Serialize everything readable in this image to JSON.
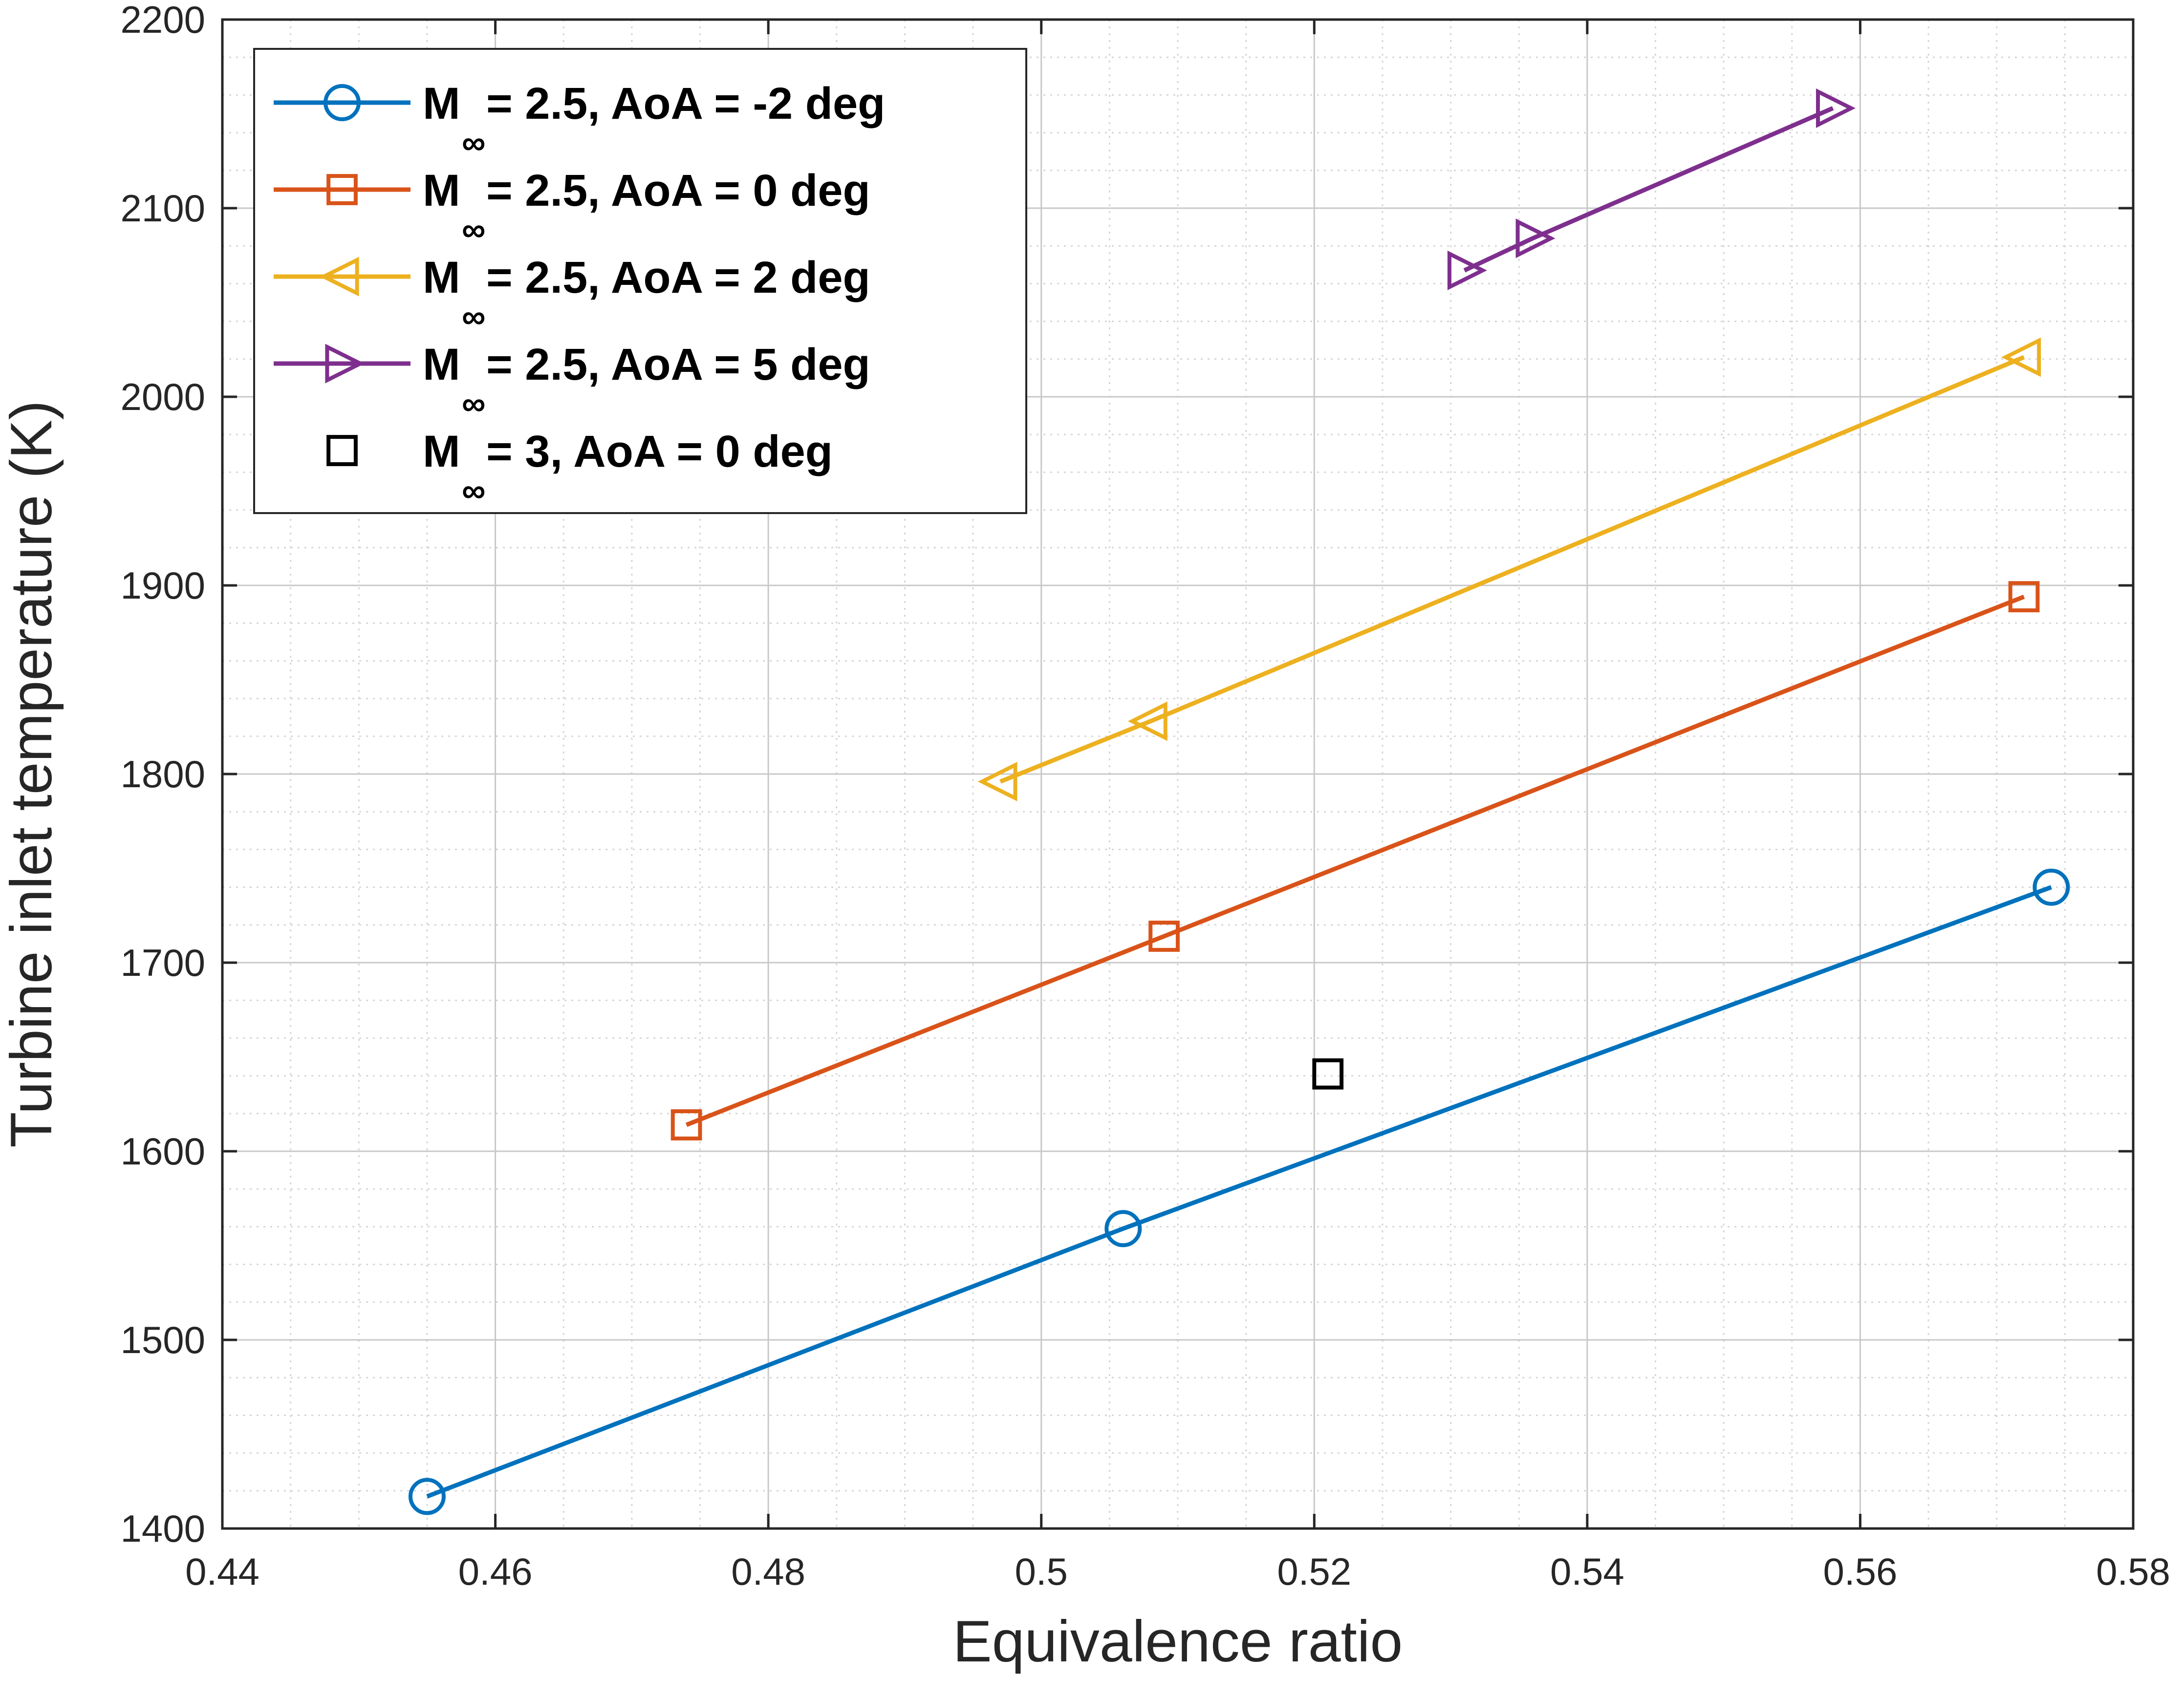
{
  "chart_data": {
    "type": "line",
    "title": "",
    "xlabel": "Equivalence ratio",
    "ylabel": "Turbine inlet temperature (K)",
    "xlim": [
      0.44,
      0.58
    ],
    "ylim": [
      1400,
      2200
    ],
    "xticks": [
      0.44,
      0.46,
      0.48,
      0.5,
      0.52,
      0.54,
      0.56,
      0.58
    ],
    "xtick_labels": [
      "0.44",
      "0.46",
      "0.48",
      "0.5",
      "0.52",
      "0.54",
      "0.56",
      "0.58"
    ],
    "yticks": [
      1400,
      1500,
      1600,
      1700,
      1800,
      1900,
      2000,
      2100,
      2200
    ],
    "ytick_labels": [
      "1400",
      "1500",
      "1600",
      "1700",
      "1800",
      "1900",
      "2000",
      "2100",
      "2200"
    ],
    "grid": true,
    "minor_grid": true,
    "legend_position": "top-left",
    "series": [
      {
        "name": "= 2.5, AoA = -2 deg",
        "mach_symbol": "M",
        "mach_subscript": "∞",
        "color": "#0072BD",
        "marker": "circle",
        "line": true,
        "x": [
          0.455,
          0.506,
          0.574
        ],
        "y": [
          1417,
          1559,
          1740
        ]
      },
      {
        "name": "= 2.5, AoA = 0 deg",
        "mach_symbol": "M",
        "mach_subscript": "∞",
        "color": "#D95319",
        "marker": "square",
        "line": true,
        "x": [
          0.474,
          0.509,
          0.572
        ],
        "y": [
          1614,
          1714,
          1894
        ]
      },
      {
        "name": "= 2.5, AoA = 2 deg",
        "mach_symbol": "M",
        "mach_subscript": "∞",
        "color": "#EDB120",
        "marker": "triangle-left",
        "line": true,
        "x": [
          0.497,
          0.508,
          0.572
        ],
        "y": [
          1796,
          1828,
          2021
        ]
      },
      {
        "name": "= 2.5, AoA = 5 deg",
        "mach_symbol": "M",
        "mach_subscript": "∞",
        "color": "#7E2F8E",
        "marker": "triangle-right",
        "line": true,
        "x": [
          0.531,
          0.536,
          0.558
        ],
        "y": [
          2067,
          2084,
          2153
        ]
      },
      {
        "name": "= 3, AoA = 0 deg",
        "mach_symbol": "M",
        "mach_subscript": "∞",
        "color": "#000000",
        "marker": "square",
        "line": false,
        "x": [
          0.521
        ],
        "y": [
          1641
        ]
      }
    ]
  }
}
